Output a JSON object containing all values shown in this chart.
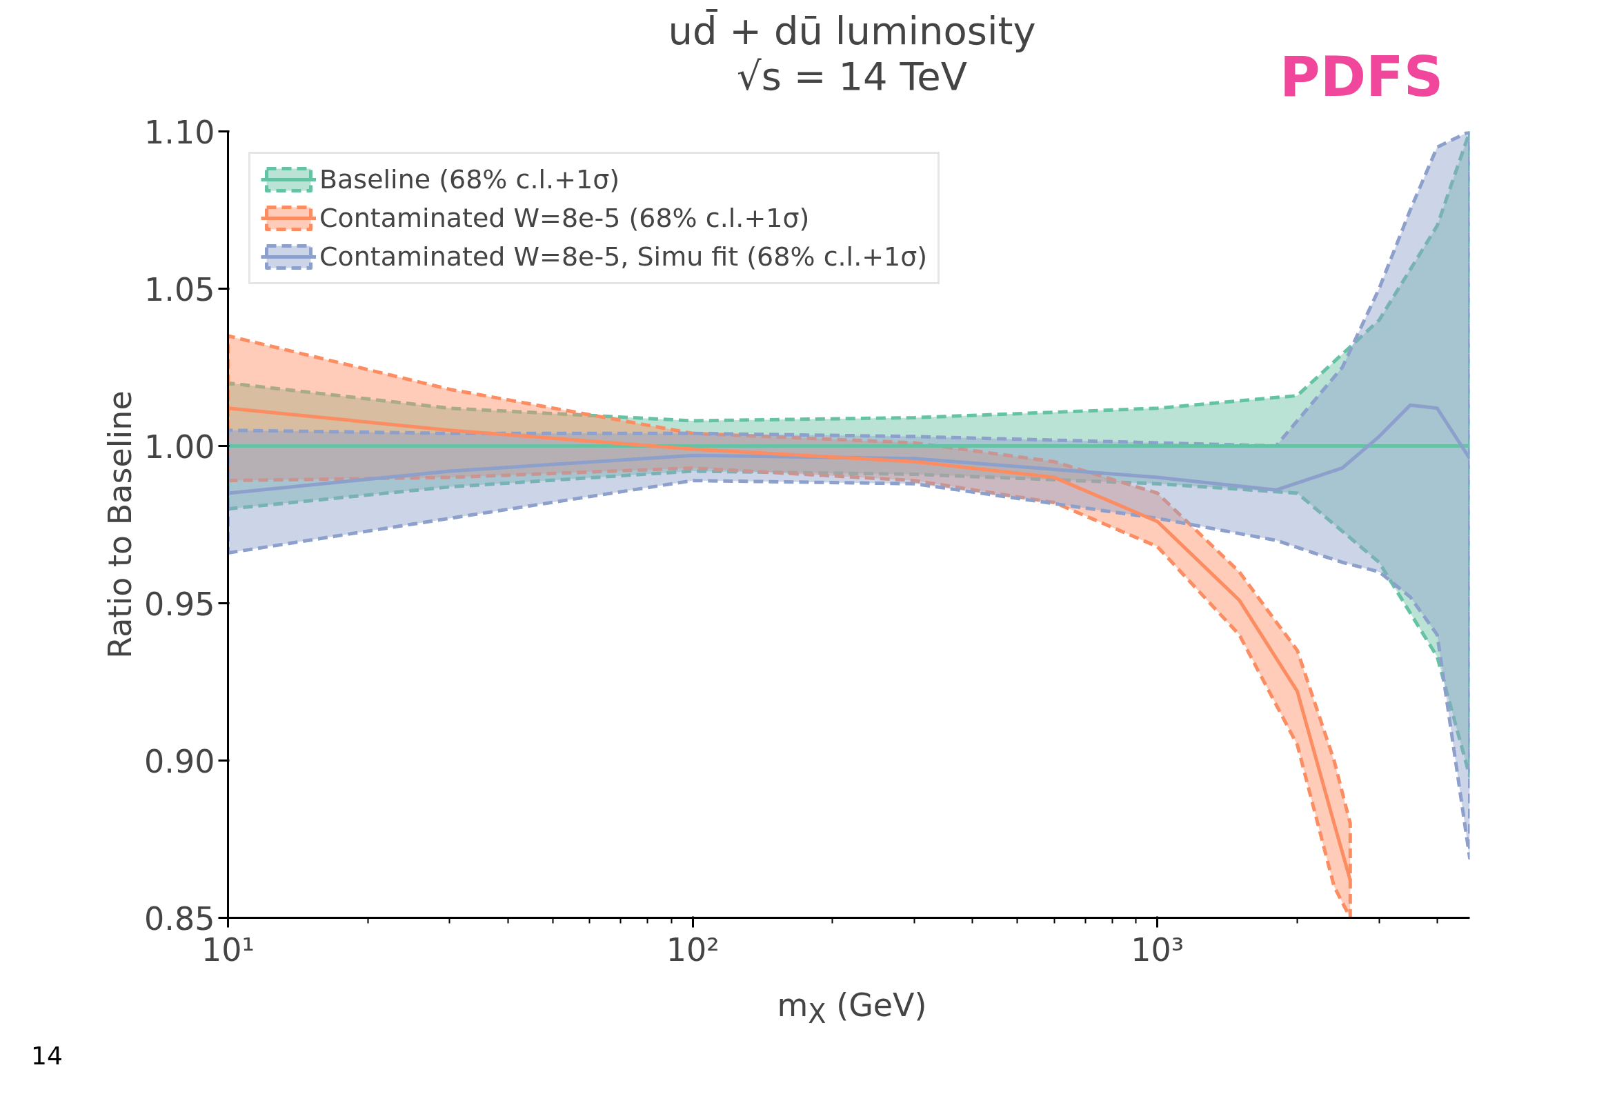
{
  "chart_data": {
    "type": "line",
    "title": "ud̄ + dū luminosity",
    "subtitle": "√s = 14 TeV",
    "xlabel": "m$_{X}$ (GeV)",
    "ylabel": "Ratio to Baseline",
    "log": "x",
    "xlim": [
      10,
      4700
    ],
    "ylim": [
      0.85,
      1.1
    ],
    "xticks": [
      {
        "value": 10,
        "label": "10¹"
      },
      {
        "value": 100,
        "label": "10²"
      },
      {
        "value": 1000,
        "label": "10³"
      }
    ],
    "yticks": [
      {
        "value": 0.85,
        "label": "0.85"
      },
      {
        "value": 0.9,
        "label": "0.90"
      },
      {
        "value": 0.95,
        "label": "0.95"
      },
      {
        "value": 1.0,
        "label": "1.00"
      },
      {
        "value": 1.05,
        "label": "1.05"
      },
      {
        "value": 1.1,
        "label": "1.10"
      }
    ],
    "grid": false,
    "legend": "top left",
    "line_style": "solid",
    "annotations": [
      "PDFS",
      "14"
    ],
    "series": [
      {
        "name": "Baseline (68% c.l.+1σ)",
        "color": "#66c2a5",
        "x": [
          10,
          30,
          100,
          300,
          1000,
          2000,
          3000,
          4000,
          4700
        ],
        "values": [
          1.0,
          1.0,
          1.0,
          1.0,
          1.0,
          1.0,
          1.0,
          1.0,
          1.0
        ],
        "lower": [
          0.98,
          0.987,
          0.992,
          0.991,
          0.988,
          0.985,
          0.963,
          0.933,
          0.895
        ],
        "upper": [
          1.02,
          1.012,
          1.008,
          1.009,
          1.012,
          1.016,
          1.04,
          1.07,
          1.1
        ]
      },
      {
        "name": "Contaminated W=8e-5 (68% c.l.+1σ)",
        "color": "#fc8d62",
        "x": [
          10,
          30,
          100,
          300,
          600,
          1000,
          1500,
          2000,
          2400,
          2600
        ],
        "values": [
          1.012,
          1.005,
          0.999,
          0.995,
          0.99,
          0.976,
          0.951,
          0.922,
          0.88,
          0.862
        ],
        "lower": [
          0.989,
          0.99,
          0.993,
          0.989,
          0.982,
          0.968,
          0.94,
          0.905,
          0.86,
          0.85
        ],
        "upper": [
          1.035,
          1.018,
          1.004,
          1.001,
          0.995,
          0.985,
          0.96,
          0.935,
          0.9,
          0.88
        ]
      },
      {
        "name": "Contaminated W=8e-5, Simu fit (68% c.l.+1σ)",
        "color": "#8da0cb",
        "x": [
          10,
          30,
          100,
          300,
          1000,
          1800,
          2500,
          3000,
          3500,
          4000,
          4700
        ],
        "values": [
          0.985,
          0.992,
          0.997,
          0.996,
          0.99,
          0.986,
          0.993,
          1.003,
          1.013,
          1.012,
          0.996
        ],
        "lower": [
          0.966,
          0.977,
          0.989,
          0.988,
          0.977,
          0.97,
          0.963,
          0.96,
          0.952,
          0.94,
          0.869
        ],
        "upper": [
          1.005,
          1.004,
          1.004,
          1.003,
          1.001,
          1.0,
          1.025,
          1.05,
          1.075,
          1.095,
          1.1
        ]
      }
    ]
  }
}
